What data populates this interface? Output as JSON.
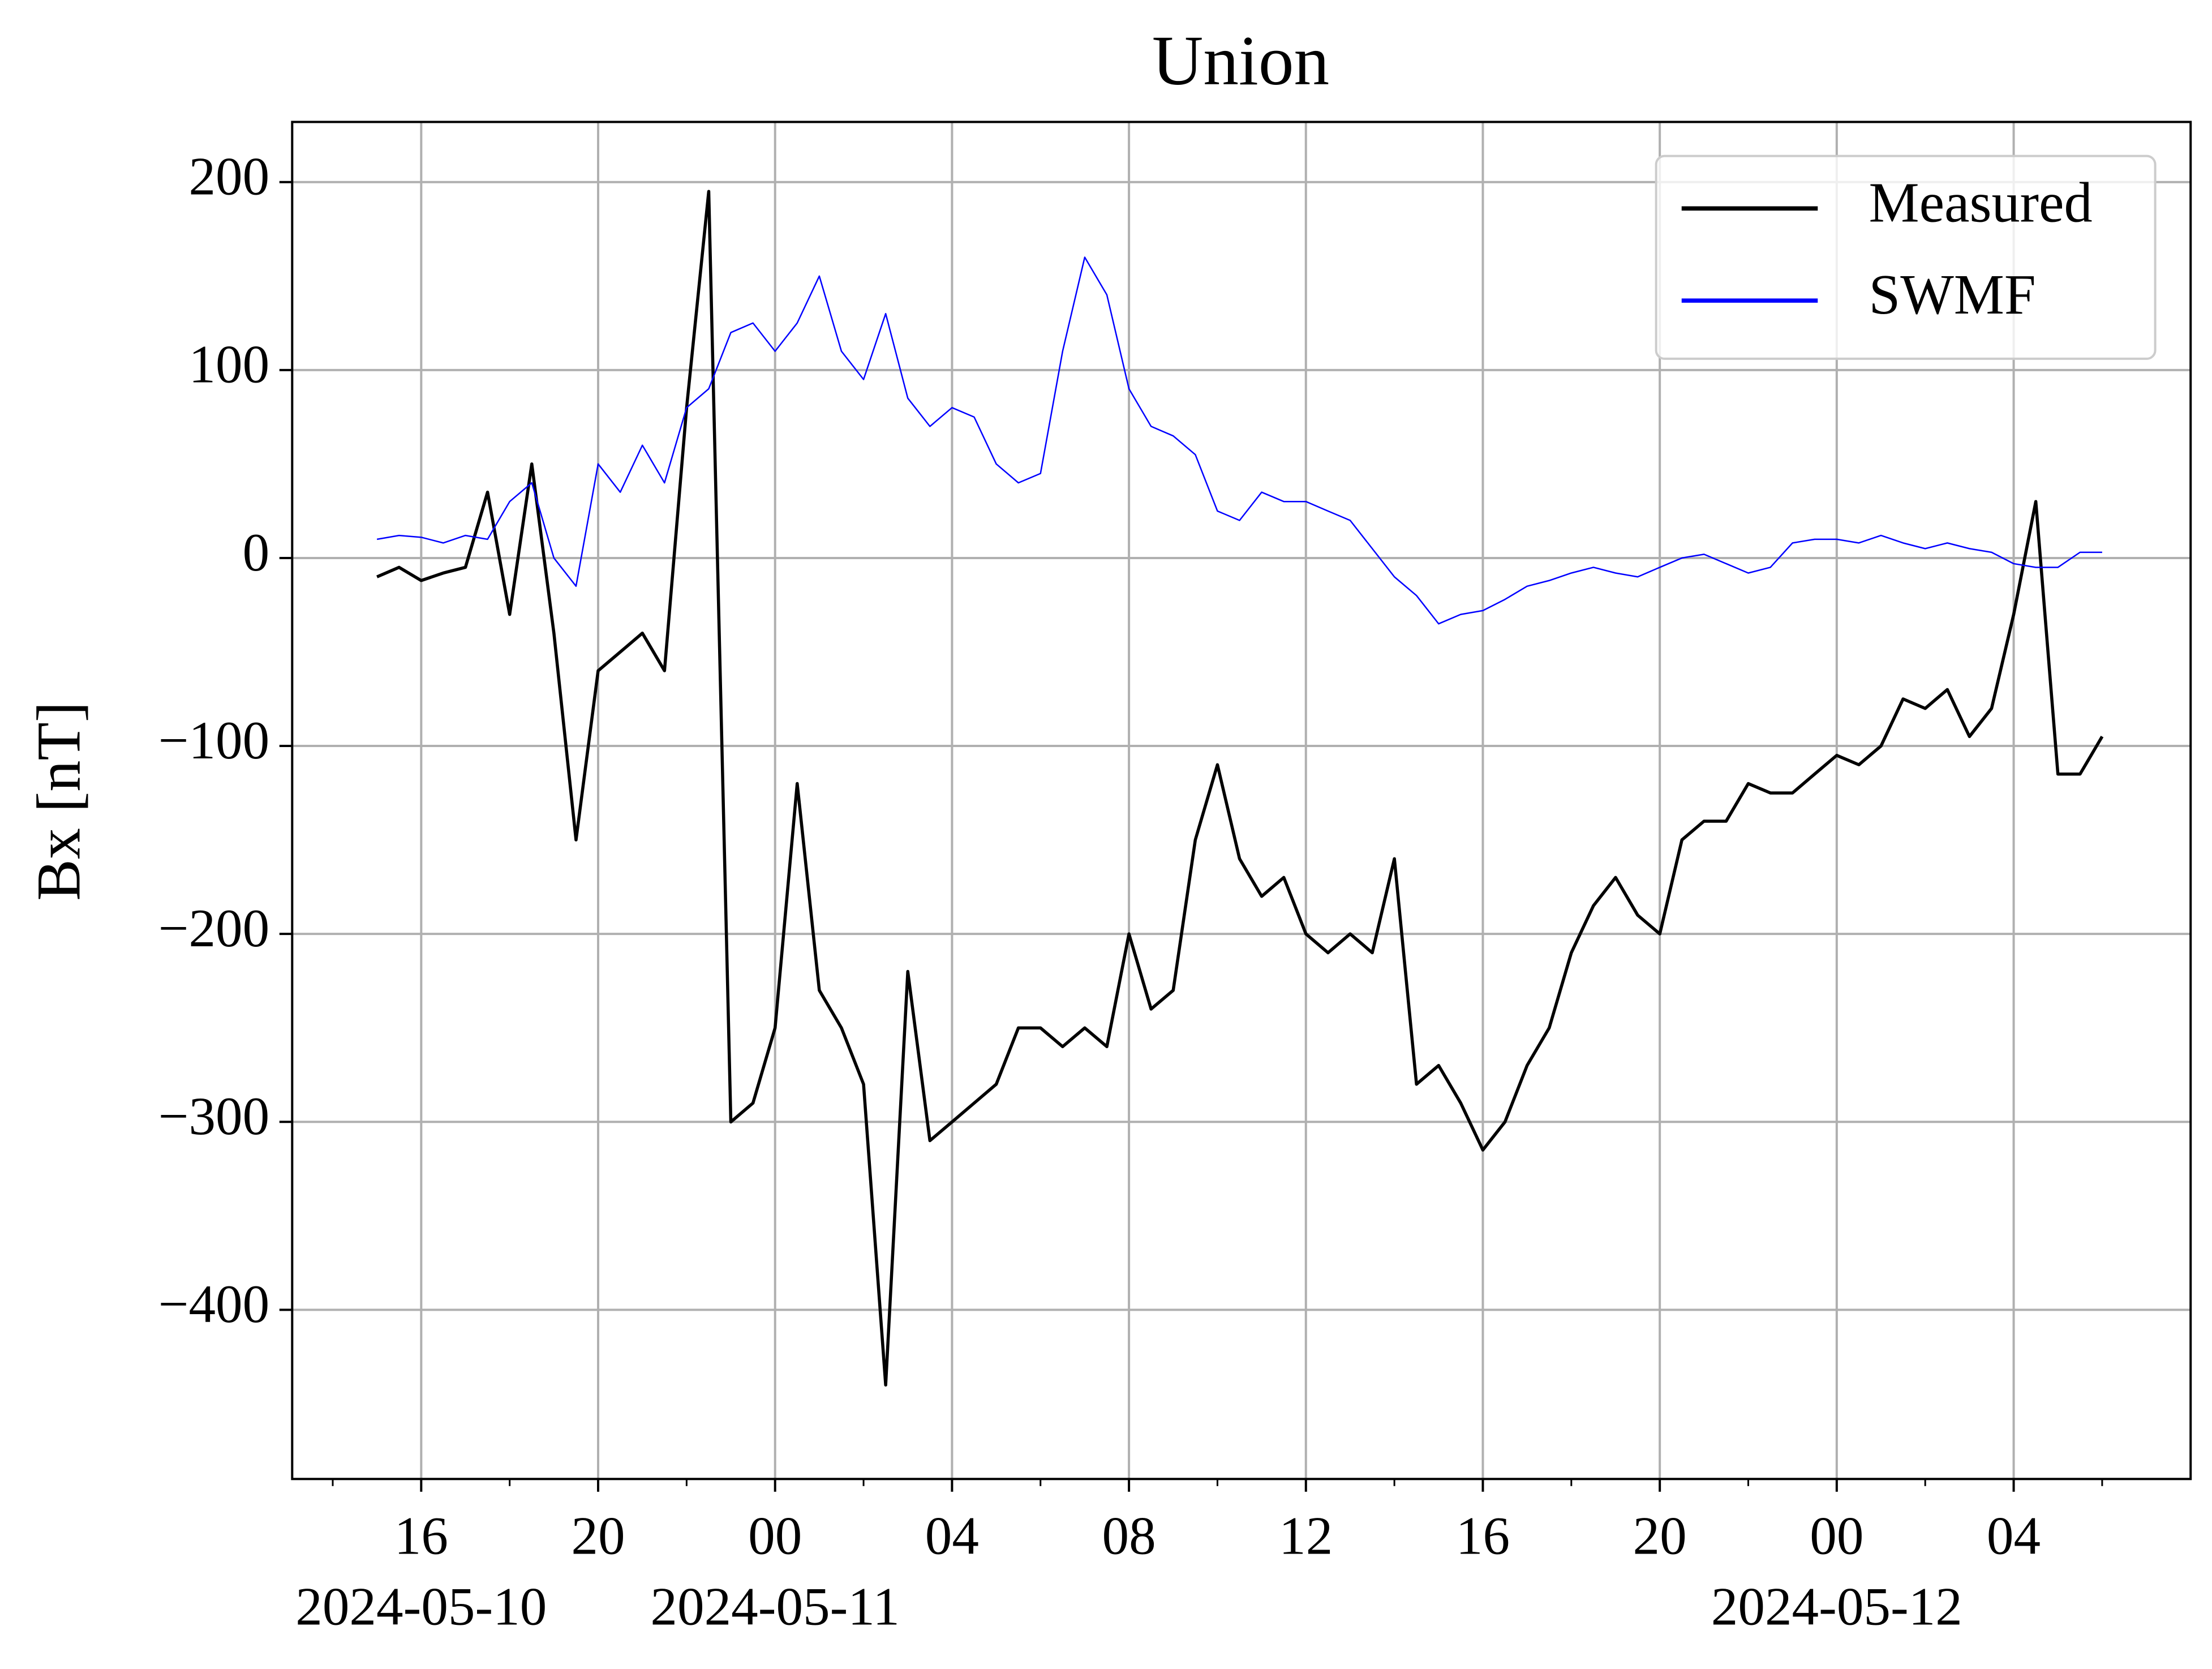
{
  "chart_data": {
    "type": "line",
    "title": "Union",
    "ylabel": "Bx [nT]",
    "x": [
      "2024-05-10 15:00",
      "2024-05-10 15:30",
      "2024-05-10 16:00",
      "2024-05-10 16:30",
      "2024-05-10 17:00",
      "2024-05-10 17:30",
      "2024-05-10 18:00",
      "2024-05-10 18:30",
      "2024-05-10 19:00",
      "2024-05-10 19:30",
      "2024-05-10 20:00",
      "2024-05-10 20:30",
      "2024-05-10 21:00",
      "2024-05-10 21:30",
      "2024-05-10 22:00",
      "2024-05-10 22:30",
      "2024-05-10 23:00",
      "2024-05-10 23:30",
      "2024-05-11 00:00",
      "2024-05-11 00:30",
      "2024-05-11 01:00",
      "2024-05-11 01:30",
      "2024-05-11 02:00",
      "2024-05-11 02:30",
      "2024-05-11 03:00",
      "2024-05-11 03:30",
      "2024-05-11 04:00",
      "2024-05-11 04:30",
      "2024-05-11 05:00",
      "2024-05-11 05:30",
      "2024-05-11 06:00",
      "2024-05-11 06:30",
      "2024-05-11 07:00",
      "2024-05-11 07:30",
      "2024-05-11 08:00",
      "2024-05-11 08:30",
      "2024-05-11 09:00",
      "2024-05-11 09:30",
      "2024-05-11 10:00",
      "2024-05-11 10:30",
      "2024-05-11 11:00",
      "2024-05-11 11:30",
      "2024-05-11 12:00",
      "2024-05-11 12:30",
      "2024-05-11 13:00",
      "2024-05-11 13:30",
      "2024-05-11 14:00",
      "2024-05-11 14:30",
      "2024-05-11 15:00",
      "2024-05-11 15:30",
      "2024-05-11 16:00",
      "2024-05-11 16:30",
      "2024-05-11 17:00",
      "2024-05-11 17:30",
      "2024-05-11 18:00",
      "2024-05-11 18:30",
      "2024-05-11 19:00",
      "2024-05-11 19:30",
      "2024-05-11 20:00",
      "2024-05-11 20:30",
      "2024-05-11 21:00",
      "2024-05-11 21:30",
      "2024-05-11 22:00",
      "2024-05-11 22:30",
      "2024-05-11 23:00",
      "2024-05-11 23:30",
      "2024-05-12 00:00",
      "2024-05-12 00:30",
      "2024-05-12 01:00",
      "2024-05-12 01:30",
      "2024-05-12 02:00",
      "2024-05-12 02:30",
      "2024-05-12 03:00",
      "2024-05-12 03:30",
      "2024-05-12 04:00",
      "2024-05-12 04:30",
      "2024-05-12 05:00",
      "2024-05-12 05:30",
      "2024-05-12 06:00"
    ],
    "series": [
      {
        "name": "Measured",
        "color": "#000000",
        "width": 2.2,
        "values": [
          -10,
          -5,
          -12,
          -8,
          -5,
          35,
          -30,
          50,
          -40,
          -150,
          -60,
          -50,
          -40,
          -60,
          80,
          195,
          -300,
          -290,
          -250,
          -120,
          -230,
          -250,
          -280,
          -440,
          -220,
          -310,
          -300,
          -290,
          -280,
          -250,
          -250,
          -260,
          -250,
          -260,
          -200,
          -240,
          -230,
          -150,
          -110,
          -160,
          -180,
          -170,
          -200,
          -210,
          -200,
          -210,
          -160,
          -280,
          -270,
          -290,
          -315,
          -300,
          -270,
          -250,
          -210,
          -185,
          -170,
          -190,
          -200,
          -150,
          -140,
          -140,
          -120,
          -125,
          -125,
          -115,
          -105,
          -110,
          -100,
          -75,
          -80,
          -70,
          -95,
          -80,
          -30,
          30,
          -115,
          -115,
          -95
        ]
      },
      {
        "name": "SWMF",
        "color": "#0000ff",
        "width": 1,
        "values": [
          10,
          12,
          11,
          8,
          12,
          10,
          30,
          40,
          0,
          -15,
          50,
          35,
          60,
          40,
          80,
          90,
          120,
          125,
          110,
          125,
          150,
          110,
          95,
          130,
          85,
          70,
          80,
          75,
          50,
          40,
          45,
          110,
          160,
          140,
          90,
          70,
          65,
          55,
          25,
          20,
          35,
          30,
          30,
          25,
          20,
          5,
          -10,
          -20,
          -35,
          -30,
          -28,
          -22,
          -15,
          -12,
          -8,
          -5,
          -8,
          -10,
          -5,
          0,
          2,
          -3,
          -8,
          -5,
          8,
          10,
          10,
          8,
          12,
          8,
          5,
          8,
          5,
          3,
          -3,
          -5,
          -5,
          3,
          3
        ]
      }
    ],
    "xlim": [
      "2024-05-10 13:05",
      "2024-05-12 08:00"
    ],
    "xticks": [
      {
        "value": "2024-05-10 16:00",
        "label": "16"
      },
      {
        "value": "2024-05-10 20:00",
        "label": "20"
      },
      {
        "value": "2024-05-11 00:00",
        "label": "00"
      },
      {
        "value": "2024-05-11 04:00",
        "label": "04"
      },
      {
        "value": "2024-05-11 08:00",
        "label": "08"
      },
      {
        "value": "2024-05-11 12:00",
        "label": "12"
      },
      {
        "value": "2024-05-11 16:00",
        "label": "16"
      },
      {
        "value": "2024-05-11 20:00",
        "label": "20"
      },
      {
        "value": "2024-05-12 00:00",
        "label": "00"
      },
      {
        "value": "2024-05-12 04:00",
        "label": "04"
      }
    ],
    "xtick_dates": [
      {
        "value": "2024-05-10 16:00",
        "label": "2024-05-10"
      },
      {
        "value": "2024-05-11 00:00",
        "label": "2024-05-11"
      },
      {
        "value": "2024-05-12 00:00",
        "label": "2024-05-12"
      }
    ],
    "xminorticks": [
      "2024-05-10 14:00",
      "2024-05-10 18:00",
      "2024-05-10 22:00",
      "2024-05-11 02:00",
      "2024-05-11 06:00",
      "2024-05-11 10:00",
      "2024-05-11 14:00",
      "2024-05-11 18:00",
      "2024-05-11 22:00",
      "2024-05-12 02:00",
      "2024-05-12 06:00"
    ],
    "ylim": [
      -490,
      232
    ],
    "yticks": [
      {
        "value": -400,
        "label": "−400"
      },
      {
        "value": -300,
        "label": "−300"
      },
      {
        "value": -200,
        "label": "−200"
      },
      {
        "value": -100,
        "label": "−100"
      },
      0,
      100,
      200
    ],
    "grid": true,
    "legend": "upper-right"
  }
}
